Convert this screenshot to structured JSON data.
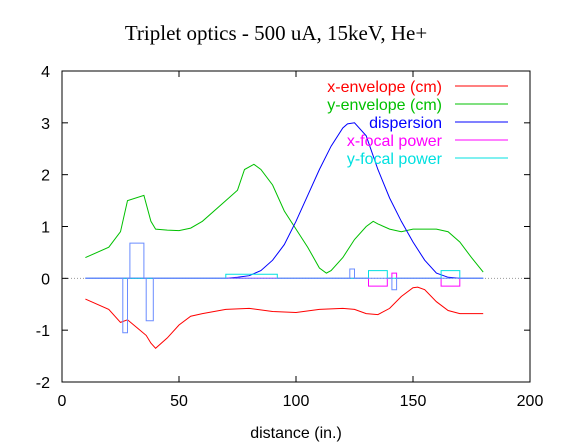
{
  "chart_data": {
    "type": "line",
    "title": "Triplet optics - 500 uA, 15keV, He+",
    "xlabel": "distance (in.)",
    "ylabel": "",
    "xlim": [
      0,
      200
    ],
    "ylim": [
      -2,
      4
    ],
    "x_ticks": [
      0,
      50,
      100,
      150,
      200
    ],
    "y_ticks": [
      -2,
      -1,
      0,
      1,
      2,
      3,
      4
    ],
    "grid": false,
    "zero_line": true,
    "legend_position": "top-right",
    "series": [
      {
        "name": "x-envelope (cm)",
        "color": "#ff0000",
        "x": [
          10,
          20,
          25,
          28,
          32,
          36,
          38,
          40,
          45,
          50,
          55,
          60,
          70,
          80,
          90,
          100,
          110,
          120,
          125,
          130,
          135,
          140,
          145,
          150,
          152,
          155,
          160,
          165,
          170,
          175,
          180
        ],
        "y": [
          -0.4,
          -0.6,
          -0.85,
          -0.8,
          -0.95,
          -1.1,
          -1.25,
          -1.35,
          -1.15,
          -0.9,
          -0.73,
          -0.68,
          -0.6,
          -0.58,
          -0.64,
          -0.66,
          -0.6,
          -0.58,
          -0.6,
          -0.68,
          -0.7,
          -0.58,
          -0.35,
          -0.18,
          -0.17,
          -0.22,
          -0.45,
          -0.62,
          -0.68,
          -0.68,
          -0.68
        ]
      },
      {
        "name": "y-envelope (cm)",
        "color": "#00c000",
        "x": [
          10,
          20,
          25,
          28,
          35,
          38,
          40,
          45,
          50,
          55,
          60,
          70,
          75,
          78,
          82,
          85,
          90,
          95,
          100,
          105,
          110,
          113,
          115,
          120,
          125,
          130,
          133,
          135,
          140,
          145,
          150,
          155,
          160,
          165,
          170,
          175,
          180
        ],
        "y": [
          0.4,
          0.6,
          0.9,
          1.5,
          1.6,
          1.1,
          0.95,
          0.93,
          0.92,
          0.97,
          1.1,
          1.5,
          1.7,
          2.1,
          2.2,
          2.1,
          1.8,
          1.3,
          0.95,
          0.6,
          0.2,
          0.1,
          0.15,
          0.4,
          0.75,
          1.0,
          1.1,
          1.05,
          0.95,
          0.9,
          0.95,
          0.95,
          0.95,
          0.9,
          0.7,
          0.4,
          0.12
        ]
      },
      {
        "name": "dispersion",
        "color": "#0000ff",
        "x": [
          10,
          60,
          70,
          75,
          80,
          85,
          90,
          95,
          100,
          105,
          110,
          115,
          120,
          122,
          125,
          130,
          135,
          140,
          145,
          150,
          155,
          160,
          165,
          170,
          175,
          180
        ],
        "y": [
          0,
          0,
          0,
          0.02,
          0.05,
          0.15,
          0.35,
          0.65,
          1.1,
          1.6,
          2.1,
          2.55,
          2.9,
          2.98,
          3.0,
          2.75,
          2.1,
          1.55,
          1.1,
          0.7,
          0.35,
          0.1,
          0.02,
          0,
          0,
          0
        ]
      },
      {
        "name": "x-focal power",
        "color": "#ff00ff",
        "x": [
          10,
          131,
          131,
          139,
          139,
          141,
          141,
          143,
          143,
          162,
          162,
          170,
          170,
          180
        ],
        "y": [
          0,
          0,
          -0.15,
          -0.15,
          0,
          0,
          0.1,
          0.1,
          0,
          0,
          -0.15,
          -0.15,
          0,
          0
        ]
      },
      {
        "name": "y-focal power",
        "color": "#00e0e0",
        "x": [
          10,
          70,
          70,
          92,
          92,
          131,
          131,
          139,
          139,
          162,
          162,
          170,
          170,
          180
        ],
        "y": [
          0,
          0,
          0.08,
          0.08,
          0,
          0,
          0.15,
          0.15,
          0,
          0,
          0.15,
          0.15,
          0,
          0
        ]
      },
      {
        "name": "",
        "color": "#6a8cff",
        "x": [
          10,
          26,
          26,
          28,
          28,
          29,
          29,
          35,
          35,
          36,
          36,
          39,
          39,
          40,
          40,
          123,
          123,
          125,
          125,
          141,
          141,
          143,
          143,
          180
        ],
        "y": [
          0,
          0,
          -1.05,
          -1.05,
          0,
          0,
          0.68,
          0.68,
          0,
          0,
          -0.82,
          -0.82,
          0,
          0,
          0,
          0,
          0.18,
          0.18,
          0,
          0,
          -0.22,
          -0.22,
          0,
          0
        ]
      }
    ]
  }
}
